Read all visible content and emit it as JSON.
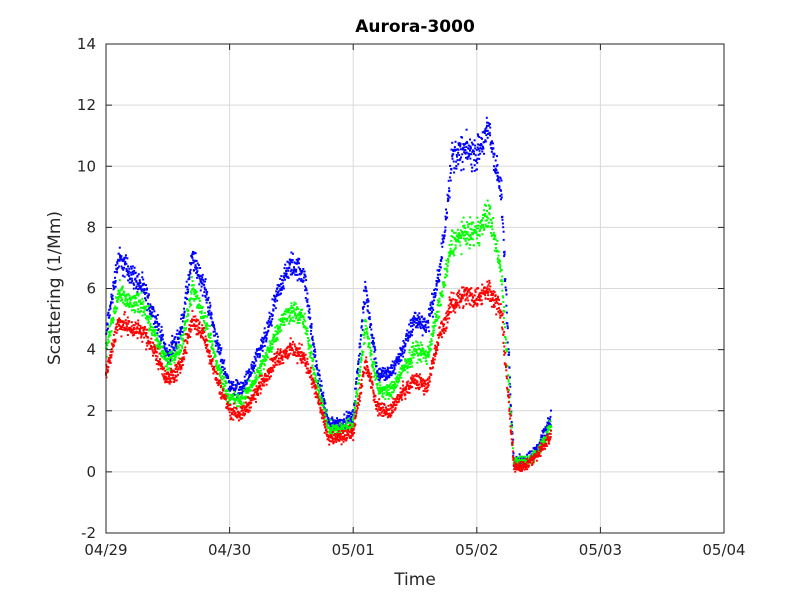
{
  "chart_data": {
    "type": "scatter",
    "title": "Aurora-3000",
    "xlabel": "Time",
    "ylabel": "Scattering (1/Mm)",
    "x_ticks": [
      "04/29",
      "04/30",
      "05/01",
      "05/02",
      "05/03",
      "05/04"
    ],
    "x_range": [
      "04/29",
      "05/04"
    ],
    "y_ticks": [
      -2,
      0,
      2,
      4,
      6,
      8,
      10,
      12,
      14
    ],
    "ylim": [
      -2,
      14
    ],
    "grid": true,
    "legend": "none",
    "x_sample_days": [
      0.0,
      0.1,
      0.2,
      0.3,
      0.4,
      0.5,
      0.6,
      0.7,
      0.8,
      0.9,
      1.0,
      1.1,
      1.2,
      1.3,
      1.4,
      1.5,
      1.6,
      1.7,
      1.8,
      1.9,
      2.0,
      2.1,
      2.2,
      2.3,
      2.4,
      2.5,
      2.6,
      2.7,
      2.8,
      2.9,
      3.0,
      3.1,
      3.2,
      3.3,
      3.4,
      3.5,
      3.6
    ],
    "series": [
      {
        "color": "#0000ff",
        "values": [
          4.5,
          7.0,
          6.5,
          6.0,
          5.0,
          3.8,
          4.5,
          7.0,
          6.0,
          4.2,
          2.8,
          2.7,
          3.5,
          4.5,
          6.0,
          6.8,
          6.5,
          3.5,
          1.6,
          1.6,
          1.8,
          6.0,
          3.2,
          3.2,
          4.0,
          5.0,
          4.8,
          6.5,
          10.3,
          10.5,
          10.4,
          11.2,
          9.0,
          0.3,
          0.4,
          0.8,
          1.8
        ]
      },
      {
        "color": "#00ff00",
        "values": [
          4.0,
          5.8,
          5.5,
          5.5,
          4.4,
          3.5,
          4.0,
          6.0,
          5.0,
          3.5,
          2.4,
          2.3,
          3.0,
          3.8,
          4.8,
          5.3,
          5.0,
          3.0,
          1.4,
          1.4,
          1.6,
          4.8,
          2.7,
          2.6,
          3.3,
          4.0,
          3.8,
          5.5,
          7.5,
          7.8,
          7.8,
          8.5,
          6.5,
          0.3,
          0.3,
          0.7,
          1.5
        ]
      },
      {
        "color": "#ff0000",
        "values": [
          3.2,
          4.9,
          4.7,
          4.6,
          3.9,
          3.0,
          3.4,
          5.0,
          4.4,
          3.0,
          2.0,
          1.9,
          2.5,
          3.2,
          3.8,
          4.0,
          3.8,
          2.6,
          1.1,
          1.1,
          1.3,
          3.6,
          2.1,
          2.0,
          2.6,
          3.0,
          2.8,
          4.5,
          5.5,
          5.8,
          5.7,
          6.0,
          5.2,
          0.2,
          0.2,
          0.6,
          1.2
        ]
      }
    ]
  }
}
